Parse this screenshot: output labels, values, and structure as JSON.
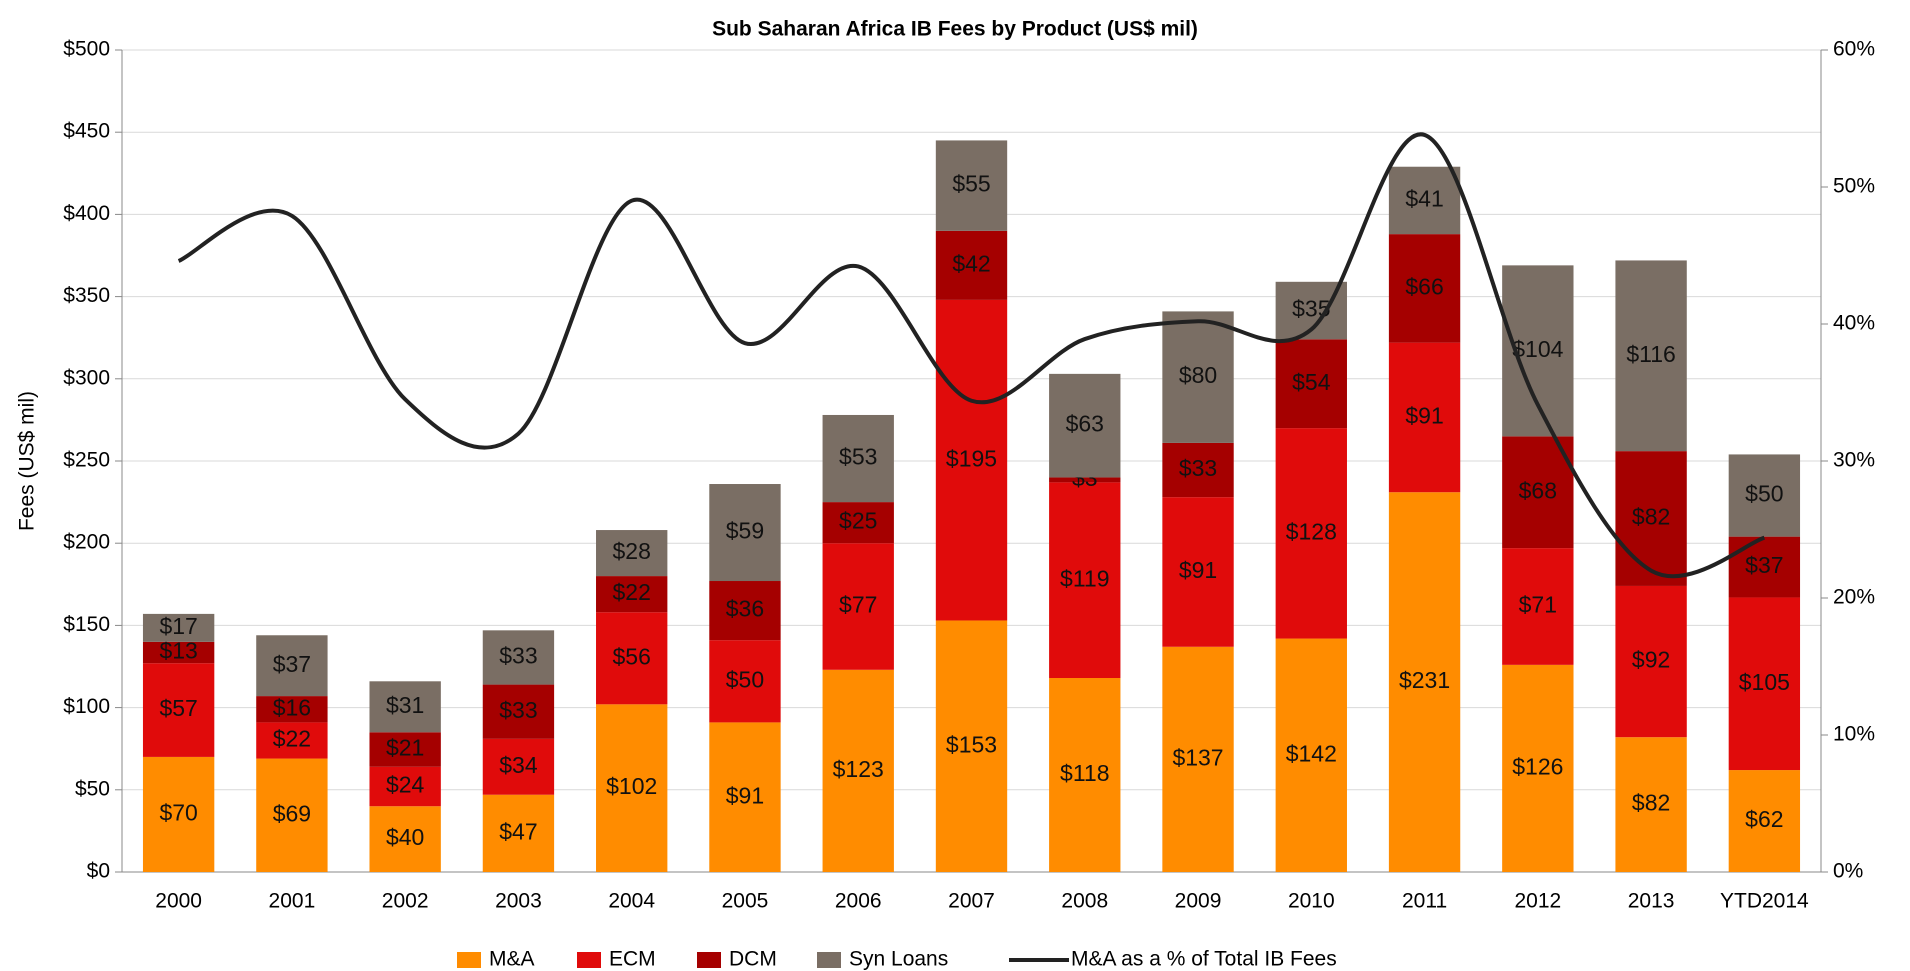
{
  "chart_data": {
    "type": "bar",
    "stacked": true,
    "title": "Sub Saharan Africa IB Fees by Product (US$ mil)",
    "y_label": "Fees (US$ mil)",
    "categories": [
      "2000",
      "2001",
      "2002",
      "2003",
      "2004",
      "2005",
      "2006",
      "2007",
      "2008",
      "2009",
      "2010",
      "2011",
      "2012",
      "2013",
      "YTD2014"
    ],
    "series": [
      {
        "name": "M&A",
        "color": "#ff8c00",
        "values": [
          70,
          69,
          40,
          47,
          102,
          91,
          123,
          153,
          118,
          137,
          142,
          231,
          126,
          82,
          62
        ],
        "value_labels": [
          "$70",
          "$69",
          "$40",
          "$47",
          "$102",
          "$91",
          "$123",
          "$153",
          "$118",
          "$137",
          "$142",
          "$231",
          "$126",
          "$82",
          "$62"
        ]
      },
      {
        "name": "ECM",
        "color": "#e00b0b",
        "values": [
          57,
          22,
          24,
          34,
          56,
          50,
          77,
          195,
          119,
          91,
          128,
          91,
          71,
          92,
          105
        ],
        "value_labels": [
          "$57",
          "$22",
          "$24",
          "$34",
          "$56",
          "$50",
          "$77",
          "$195",
          "$119",
          "$91",
          "$128",
          "$91",
          "$71",
          "$92",
          "$105"
        ]
      },
      {
        "name": "DCM",
        "color": "#a50000",
        "values": [
          13,
          16,
          21,
          33,
          22,
          36,
          25,
          42,
          3,
          33,
          54,
          66,
          68,
          82,
          37
        ],
        "value_labels": [
          "$13",
          "$16",
          "$21",
          "$33",
          "$22",
          "$36",
          "$25",
          "$42",
          "$3",
          "$33",
          "$54",
          "$66",
          "$68",
          "$82",
          "$37"
        ]
      },
      {
        "name": "Syn Loans",
        "color": "#7a6e64",
        "values": [
          17,
          37,
          31,
          33,
          28,
          59,
          53,
          55,
          63,
          80,
          35,
          41,
          104,
          116,
          50
        ],
        "value_labels": [
          "$17",
          "$37",
          "$31",
          "$33",
          "$28",
          "$59",
          "$53",
          "$55",
          "$63",
          "$80",
          "$35",
          "$41",
          "$104",
          "$116",
          "$50"
        ]
      },
      {
        "name": "M&A as a % of Total IB Fees",
        "color": "#222222",
        "type": "line",
        "axis": "y2",
        "values": [
          44.6,
          47.9,
          34.5,
          32.0,
          49.0,
          38.6,
          44.2,
          34.4,
          38.9,
          40.2,
          39.6,
          53.8,
          34.1,
          22.0,
          24.4
        ]
      }
    ],
    "ylim": [
      0,
      500
    ],
    "yticks": [
      {
        "value": 0,
        "label": "$0"
      },
      {
        "value": 50,
        "label": "$50"
      },
      {
        "value": 100,
        "label": "$100"
      },
      {
        "value": 150,
        "label": "$150"
      },
      {
        "value": 200,
        "label": "$200"
      },
      {
        "value": 250,
        "label": "$250"
      },
      {
        "value": 300,
        "label": "$300"
      },
      {
        "value": 350,
        "label": "$350"
      },
      {
        "value": 400,
        "label": "$400"
      },
      {
        "value": 450,
        "label": "$450"
      },
      {
        "value": 500,
        "label": "$500"
      }
    ],
    "y2lim": [
      0,
      60
    ],
    "y2ticks": [
      {
        "value": 0,
        "label": "0%"
      },
      {
        "value": 10,
        "label": "10%"
      },
      {
        "value": 20,
        "label": "20%"
      },
      {
        "value": 30,
        "label": "30%"
      },
      {
        "value": 40,
        "label": "40%"
      },
      {
        "value": 50,
        "label": "50%"
      },
      {
        "value": 60,
        "label": "60%"
      }
    ],
    "grid": true,
    "legend": "bottom"
  }
}
